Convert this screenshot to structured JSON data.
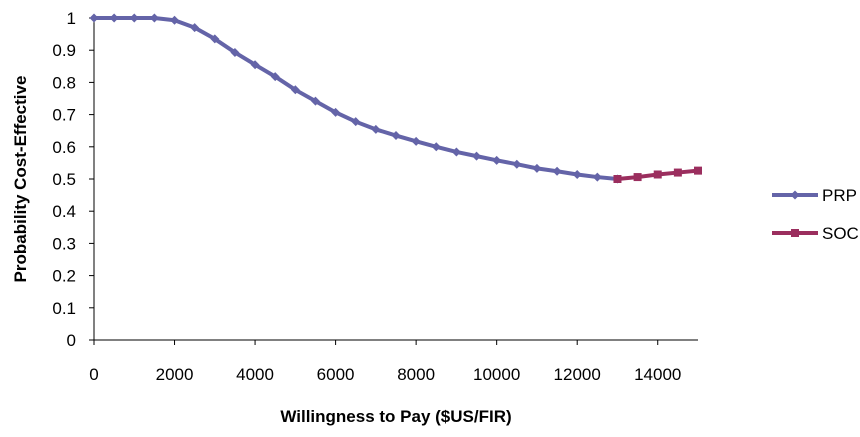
{
  "chart_data": {
    "type": "line",
    "title": "",
    "xlabel": "Willingness to Pay ($US/FIR)",
    "ylabel": "Probability Cost-Effective",
    "xlim": [
      0,
      15000
    ],
    "ylim": [
      0,
      1
    ],
    "x_ticks": [
      0,
      2000,
      4000,
      6000,
      8000,
      10000,
      12000,
      14000
    ],
    "y_ticks": [
      0,
      0.1,
      0.2,
      0.3,
      0.4,
      0.5,
      0.6,
      0.7,
      0.8,
      0.9,
      1
    ],
    "x_tick_labels": [
      "0",
      "2000",
      "4000",
      "6000",
      "8000",
      "10000",
      "12000",
      "14000"
    ],
    "y_tick_labels": [
      "0",
      "0.1",
      "0.2",
      "0.3",
      "0.4",
      "0.5",
      "0.6",
      "0.7",
      "0.8",
      "0.9",
      "1"
    ],
    "grid": false,
    "legend_position": "right",
    "series": [
      {
        "name": "PRP",
        "color": "#6464A8",
        "marker": "diamond",
        "x": [
          0,
          500,
          1000,
          1500,
          2000,
          2500,
          3000,
          3500,
          4000,
          4500,
          5000,
          5500,
          6000,
          6500,
          7000,
          7500,
          8000,
          8500,
          9000,
          9500,
          10000,
          10500,
          11000,
          11500,
          12000,
          12500,
          13000
        ],
        "y": [
          1.0,
          1.0,
          1.0,
          1.0,
          0.993,
          0.97,
          0.935,
          0.893,
          0.855,
          0.818,
          0.777,
          0.742,
          0.707,
          0.678,
          0.654,
          0.635,
          0.617,
          0.6,
          0.584,
          0.571,
          0.558,
          0.546,
          0.533,
          0.524,
          0.514,
          0.506,
          0.5
        ]
      },
      {
        "name": "SOC",
        "color": "#9B2E5E",
        "marker": "square",
        "x": [
          13000,
          13500,
          14000,
          14500,
          15000
        ],
        "y": [
          0.5,
          0.506,
          0.514,
          0.52,
          0.526
        ]
      }
    ]
  }
}
